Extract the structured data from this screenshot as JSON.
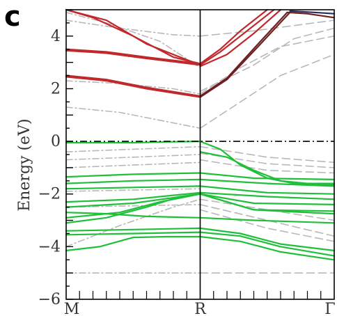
{
  "panel_label": "c",
  "chart_data": {
    "type": "line",
    "ylabel": "Energy (eV)",
    "ylim": [
      -6,
      5
    ],
    "yticks": [
      4,
      2,
      0,
      -2,
      -4,
      -6
    ],
    "ytick_labels": [
      "4",
      "2",
      "0",
      "−2",
      "−4",
      "−6"
    ],
    "xticks": [
      0,
      1,
      2
    ],
    "xtick_labels": [
      "M",
      "R",
      "Γ"
    ],
    "fermi_level": 0,
    "colors": {
      "conduction_red": "#c0282c",
      "conduction_dark": "#6e2020",
      "conduction_navy": "#2a2a5a",
      "valence_green": "#1fbf3a",
      "reference_gray": "#b8b8b8",
      "axis": "#000000"
    },
    "series": [
      {
        "group": "conduction",
        "color": "#c0282c",
        "x": [
          0,
          0.3,
          0.6,
          1.0
        ],
        "y": [
          3.5,
          3.4,
          3.2,
          2.95
        ]
      },
      {
        "group": "conduction",
        "color": "#c0282c",
        "x": [
          0,
          0.3,
          0.6,
          1.0
        ],
        "y": [
          3.45,
          3.35,
          3.15,
          2.9
        ]
      },
      {
        "group": "conduction",
        "color": "#c0282c",
        "x": [
          0,
          0.3,
          0.6,
          1.0
        ],
        "y": [
          2.5,
          2.35,
          2.05,
          1.72
        ]
      },
      {
        "group": "conduction",
        "color": "#c0282c",
        "x": [
          0,
          0.3,
          0.6,
          1.0
        ],
        "y": [
          2.45,
          2.3,
          2.0,
          1.68
        ]
      },
      {
        "group": "conduction",
        "color": "#c0282c",
        "x": [
          0,
          0.2,
          0.5,
          0.8,
          1.0
        ],
        "y": [
          5.0,
          4.7,
          4.0,
          3.2,
          2.95
        ]
      },
      {
        "group": "conduction",
        "color": "#c0282c",
        "x": [
          0,
          0.3,
          0.6,
          1.0
        ],
        "y": [
          5.0,
          4.6,
          3.7,
          2.9
        ]
      },
      {
        "group": "conduction",
        "color": "#c0282c",
        "x": [
          1.0,
          1.15,
          1.3,
          1.5
        ],
        "y": [
          2.95,
          3.5,
          4.2,
          5.0
        ]
      },
      {
        "group": "conduction",
        "color": "#c0282c",
        "x": [
          1.0,
          1.15,
          1.35,
          1.55
        ],
        "y": [
          2.9,
          3.4,
          4.2,
          5.0
        ]
      },
      {
        "group": "conduction",
        "color": "#c0282c",
        "x": [
          1.0,
          1.2,
          1.4,
          1.6
        ],
        "y": [
          2.85,
          3.3,
          4.1,
          5.0
        ]
      },
      {
        "group": "conduction",
        "color": "#6e2020",
        "x": [
          1.0,
          1.2,
          1.45,
          1.65
        ],
        "y": [
          1.72,
          2.4,
          3.8,
          4.9
        ]
      },
      {
        "group": "conduction",
        "color": "#6e2020",
        "x": [
          1.0,
          1.2,
          1.45,
          1.67
        ],
        "y": [
          1.68,
          2.35,
          3.7,
          4.9
        ]
      },
      {
        "group": "conduction",
        "color": "#6e2020",
        "x": [
          1.65,
          1.8,
          2.0
        ],
        "y": [
          4.9,
          4.85,
          4.7
        ]
      },
      {
        "group": "conduction",
        "color": "#2a2a5a",
        "x": [
          1.67,
          1.85,
          2.0
        ],
        "y": [
          4.95,
          4.9,
          4.85
        ]
      },
      {
        "group": "valence",
        "color": "#1fbf3a",
        "x": [
          0,
          0.2,
          0.5,
          0.75,
          1.0
        ],
        "y": [
          -0.05,
          -0.05,
          -0.05,
          -0.02,
          0.0
        ]
      },
      {
        "group": "valence",
        "color": "#1fbf3a",
        "x": [
          1.0,
          1.15,
          1.3,
          1.5,
          1.7,
          2.0
        ],
        "y": [
          0.0,
          -0.3,
          -0.9,
          -1.4,
          -1.6,
          -1.65
        ]
      },
      {
        "group": "valence",
        "color": "#1fbf3a",
        "x": [
          1.0,
          1.2,
          1.4,
          1.6,
          1.8,
          2.0
        ],
        "y": [
          -0.4,
          -0.6,
          -1.1,
          -1.5,
          -1.6,
          -1.6
        ]
      },
      {
        "group": "valence",
        "color": "#1fbf3a",
        "x": [
          0,
          0.5,
          1.0,
          1.4,
          2.0
        ],
        "y": [
          -1.35,
          -1.25,
          -1.2,
          -1.4,
          -1.45
        ]
      },
      {
        "group": "valence",
        "color": "#1fbf3a",
        "x": [
          0,
          0.5,
          1.0,
          1.5,
          2.0
        ],
        "y": [
          -1.6,
          -1.5,
          -1.45,
          -1.6,
          -1.7
        ]
      },
      {
        "group": "valence",
        "color": "#1fbf3a",
        "x": [
          0,
          0.5,
          1.0,
          1.5,
          2.0
        ],
        "y": [
          -1.8,
          -1.75,
          -1.7,
          -1.95,
          -2.0
        ]
      },
      {
        "group": "valence",
        "color": "#1fbf3a",
        "x": [
          0,
          0.5,
          1.0,
          1.5,
          2.0
        ],
        "y": [
          -2.3,
          -2.2,
          -1.95,
          -2.1,
          -2.2
        ]
      },
      {
        "group": "valence",
        "color": "#1fbf3a",
        "x": [
          0,
          0.5,
          1.0,
          1.4,
          2.0
        ],
        "y": [
          -2.5,
          -2.35,
          -2.0,
          -2.35,
          -2.4
        ]
      },
      {
        "group": "valence",
        "color": "#1fbf3a",
        "x": [
          0,
          0.4,
          0.7,
          1.0,
          1.4,
          2.0
        ],
        "y": [
          -2.9,
          -2.7,
          -2.3,
          -2.0,
          -2.6,
          -2.65
        ]
      },
      {
        "group": "valence",
        "color": "#1fbf3a",
        "x": [
          0,
          0.3,
          0.6,
          0.85,
          1.0,
          1.4,
          2.0
        ],
        "y": [
          -3.1,
          -2.9,
          -2.5,
          -2.1,
          -2.0,
          -2.6,
          -2.75
        ]
      },
      {
        "group": "valence",
        "color": "#1fbf3a",
        "x": [
          0,
          0.5,
          1.0,
          1.3,
          1.6,
          2.0
        ],
        "y": [
          -3.4,
          -3.35,
          -3.3,
          -3.5,
          -3.9,
          -4.15
        ]
      },
      {
        "group": "valence",
        "color": "#1fbf3a",
        "x": [
          0,
          0.5,
          1.0,
          1.3,
          1.6,
          2.0
        ],
        "y": [
          -3.55,
          -3.5,
          -3.45,
          -3.6,
          -4.0,
          -4.35
        ]
      },
      {
        "group": "valence",
        "color": "#1fbf3a",
        "x": [
          0,
          0.25,
          0.5,
          0.75,
          1.0,
          1.3,
          1.6,
          2.0
        ],
        "y": [
          -4.15,
          -4.0,
          -3.65,
          -3.62,
          -3.62,
          -3.8,
          -4.2,
          -4.5
        ]
      },
      {
        "group": "valence",
        "color": "#1fbf3a",
        "x": [
          0,
          0.3,
          0.6,
          1.0,
          1.4,
          2.0
        ],
        "y": [
          -2.7,
          -2.75,
          -2.85,
          -2.9,
          -3.0,
          -3.1
        ]
      },
      {
        "group": "reference",
        "color": "#b8b8b8",
        "dash": "dashdot",
        "x": [
          0,
          0.4,
          0.7,
          1.0
        ],
        "y": [
          1.3,
          1.1,
          0.8,
          0.5
        ]
      },
      {
        "group": "reference",
        "color": "#b8b8b8",
        "dash": "dashdot",
        "x": [
          0,
          0.4,
          0.8,
          1.0
        ],
        "y": [
          2.3,
          2.2,
          2.0,
          1.8
        ]
      },
      {
        "group": "reference",
        "color": "#b8b8b8",
        "dash": "dashdot",
        "x": [
          0,
          0.4,
          0.8,
          1.0
        ],
        "y": [
          4.6,
          4.3,
          4.05,
          4.0
        ]
      },
      {
        "group": "reference",
        "color": "#b8b8b8",
        "dash": "dashdot",
        "x": [
          0,
          0.3,
          0.7,
          1.0
        ],
        "y": [
          4.9,
          4.5,
          3.8,
          2.8
        ]
      },
      {
        "group": "reference",
        "color": "#b8b8b8",
        "dash": "dash",
        "x": [
          1.0,
          1.3,
          1.6,
          2.0
        ],
        "y": [
          0.5,
          1.5,
          2.5,
          3.3
        ]
      },
      {
        "group": "reference",
        "color": "#b8b8b8",
        "dash": "dash",
        "x": [
          1.0,
          1.3,
          1.6,
          2.0
        ],
        "y": [
          1.8,
          2.8,
          3.6,
          4.0
        ]
      },
      {
        "group": "reference",
        "color": "#b8b8b8",
        "dash": "dash",
        "x": [
          1.0,
          1.4,
          1.7,
          2.0
        ],
        "y": [
          4.0,
          4.2,
          4.4,
          4.6
        ]
      },
      {
        "group": "reference",
        "color": "#b8b8b8",
        "dash": "dash",
        "x": [
          1.0,
          1.4,
          1.7,
          2.0
        ],
        "y": [
          1.9,
          2.9,
          3.9,
          4.3
        ]
      },
      {
        "group": "reference",
        "color": "#b8b8b8",
        "dash": "dash",
        "x": [
          1.0,
          1.5,
          2.0
        ],
        "y": [
          -0.2,
          -0.6,
          -0.8
        ]
      },
      {
        "group": "reference",
        "color": "#b8b8b8",
        "dash": "dash",
        "x": [
          1.0,
          1.5,
          2.0
        ],
        "y": [
          -0.45,
          -0.85,
          -1.0
        ]
      },
      {
        "group": "reference",
        "color": "#b8b8b8",
        "dash": "dash",
        "x": [
          1.0,
          1.5,
          2.0
        ],
        "y": [
          -0.7,
          -1.1,
          -1.2
        ]
      },
      {
        "group": "reference",
        "color": "#b8b8b8",
        "dash": "dash",
        "x": [
          1.0,
          1.5,
          2.0
        ],
        "y": [
          -2.2,
          -2.6,
          -3.0
        ]
      },
      {
        "group": "reference",
        "color": "#b8b8b8",
        "dash": "dash",
        "x": [
          1.0,
          1.5,
          2.0
        ],
        "y": [
          -2.4,
          -3.0,
          -3.6
        ]
      },
      {
        "group": "reference",
        "color": "#b8b8b8",
        "dash": "dash",
        "x": [
          1.0,
          1.5,
          2.0
        ],
        "y": [
          -2.6,
          -3.3,
          -3.8
        ]
      },
      {
        "group": "reference",
        "color": "#b8b8b8",
        "dash": "dashdot",
        "x": [
          0,
          0.5,
          1.0
        ],
        "y": [
          -0.4,
          -0.3,
          -0.2
        ]
      },
      {
        "group": "reference",
        "color": "#b8b8b8",
        "dash": "dashdot",
        "x": [
          0,
          0.5,
          1.0
        ],
        "y": [
          -0.7,
          -0.6,
          -0.5
        ]
      },
      {
        "group": "reference",
        "color": "#b8b8b8",
        "dash": "dashdot",
        "x": [
          0,
          0.5,
          1.0
        ],
        "y": [
          -1.0,
          -0.9,
          -0.8
        ]
      },
      {
        "group": "reference",
        "color": "#b8b8b8",
        "dash": "dashdot",
        "x": [
          0,
          0.5,
          1.0
        ],
        "y": [
          -1.9,
          -1.85,
          -1.8
        ]
      },
      {
        "group": "reference",
        "color": "#b8b8b8",
        "dash": "dashdot",
        "x": [
          0,
          0.5,
          1.0
        ],
        "y": [
          -2.5,
          -2.45,
          -2.4
        ]
      },
      {
        "group": "reference",
        "color": "#b8b8b8",
        "dash": "dashdot",
        "x": [
          0,
          0.4,
          0.8,
          1.0
        ],
        "y": [
          -5.0,
          -5.0,
          -5.0,
          -5.0
        ]
      },
      {
        "group": "reference",
        "color": "#b8b8b8",
        "dash": "dash",
        "x": [
          1.0,
          1.5,
          2.0
        ],
        "y": [
          -5.0,
          -5.0,
          -5.0
        ]
      },
      {
        "group": "reference",
        "color": "#b8b8b8",
        "dash": "dashdot",
        "x": [
          0,
          0.4,
          0.8,
          1.0
        ],
        "y": [
          -4.0,
          -3.2,
          -2.5,
          -2.2
        ]
      }
    ]
  }
}
